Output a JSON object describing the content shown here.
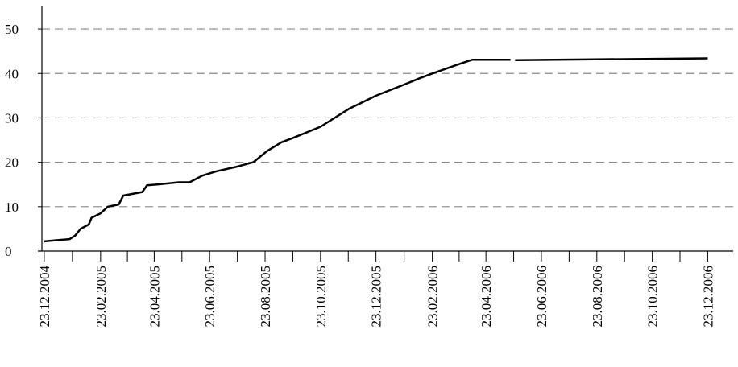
{
  "chart_data": {
    "type": "line",
    "x": [
      "23.12.2004",
      "08.01.2005",
      "20.01.2005",
      "26.01.2005",
      "01.02.2005",
      "10.02.2005",
      "13.02.2005",
      "23.02.2005",
      "03.03.2005",
      "15.03.2005",
      "20.03.2005",
      "10.04.2005",
      "15.04.2005",
      "26.04.2005",
      "20.05.2005",
      "01.06.2005",
      "15.06.2005",
      "01.07.2005",
      "23.07.2005",
      "10.08.2005",
      "25.08.2005",
      "10.09.2005",
      "23.09.2005",
      "23.10.2005",
      "23.11.2005",
      "23.12.2005",
      "23.01.2006",
      "10.02.2006",
      "23.02.2006",
      "23.03.2006",
      "08.04.2006",
      "20.05.2006",
      "22.05.2006",
      "25.05.2006",
      "23.12.2006"
    ],
    "series": [
      {
        "name": "series",
        "color": "#000000",
        "values": [
          2.2,
          2.5,
          2.7,
          3.5,
          5,
          6,
          7.5,
          8.5,
          10,
          10.5,
          12.5,
          13.3,
          14.8,
          15,
          15.5,
          15.5,
          17,
          18,
          19,
          20,
          22.5,
          24.5,
          25.5,
          28,
          32,
          35,
          37.5,
          39,
          40,
          42,
          43.1,
          43.1,
          null,
          43,
          43.4
        ]
      }
    ],
    "xlim": [
      "16.12.2004",
      "20.01.2007"
    ],
    "xticks": [
      "23.12.2004",
      "23.02.2005",
      "23.04.2005",
      "23.06.2005",
      "23.08.2005",
      "23.10.2005",
      "23.12.2005",
      "23.02.2006",
      "23.04.2006",
      "23.06.2006",
      "23.08.2006",
      "23.10.2006",
      "23.12.2006"
    ],
    "ylim": [
      0,
      54
    ],
    "yticks": [
      0,
      10,
      20,
      30,
      40,
      50
    ],
    "grid": true
  }
}
